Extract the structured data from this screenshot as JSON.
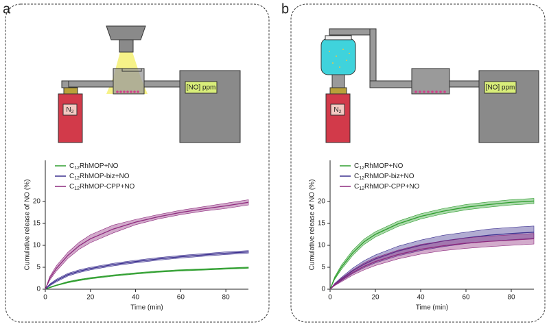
{
  "panels": [
    {
      "label": "a",
      "gas": "N2",
      "detector": "[NO] ppm"
    },
    {
      "label": "b",
      "gas": "N2",
      "detector": "[NO] ppm"
    }
  ],
  "chart_data": [
    {
      "type": "line",
      "x_label": "Time (min)",
      "y_label": "Cumulative release of NO (%)",
      "x": [
        0,
        2,
        5,
        10,
        15,
        20,
        30,
        40,
        50,
        60,
        70,
        80,
        90
      ],
      "xlim": [
        0,
        90
      ],
      "xticks": [
        0,
        20,
        40,
        60,
        80
      ],
      "ylim": [
        0,
        25
      ],
      "yticks": [
        0,
        5,
        10,
        15,
        20
      ],
      "grid": false,
      "legend": "upper left",
      "series": [
        {
          "name": "C12RhMOP+NO",
          "color": "#2e9e2e",
          "values": [
            0,
            0.4,
            0.9,
            1.6,
            2.1,
            2.5,
            3.1,
            3.6,
            4.0,
            4.3,
            4.5,
            4.7,
            4.9
          ],
          "errors": [
            0,
            0.1,
            0.1,
            0.15,
            0.15,
            0.15,
            0.15,
            0.15,
            0.15,
            0.15,
            0.15,
            0.15,
            0.15
          ]
        },
        {
          "name": "C12RhMOP-biz+NO",
          "color": "#3b2f8f",
          "values": [
            0,
            1.0,
            2.0,
            3.3,
            4.1,
            4.7,
            5.6,
            6.3,
            6.9,
            7.4,
            7.8,
            8.2,
            8.5
          ],
          "errors": [
            0,
            0.2,
            0.3,
            0.3,
            0.3,
            0.3,
            0.3,
            0.3,
            0.3,
            0.3,
            0.3,
            0.3,
            0.3
          ]
        },
        {
          "name": "C12RhMOP-CPP+NO",
          "color": "#8e2a7e",
          "values": [
            0,
            2.5,
            4.8,
            7.7,
            9.9,
            11.5,
            13.7,
            15.3,
            16.5,
            17.5,
            18.3,
            19.0,
            19.8
          ],
          "errors": [
            0,
            0.4,
            0.6,
            0.7,
            0.8,
            0.9,
            0.9,
            0.6,
            0.5,
            0.5,
            0.5,
            0.6,
            0.6
          ]
        }
      ]
    },
    {
      "type": "line",
      "x_label": "Time (min)",
      "y_label": "Cumulative release of NO (%)",
      "x": [
        0,
        2,
        5,
        10,
        15,
        20,
        30,
        40,
        50,
        60,
        70,
        80,
        90
      ],
      "xlim": [
        0,
        90
      ],
      "xticks": [
        0,
        20,
        40,
        60,
        80
      ],
      "ylim": [
        0,
        25
      ],
      "yticks": [
        0,
        5,
        10,
        15,
        20
      ],
      "grid": false,
      "legend": "upper left",
      "series": [
        {
          "name": "C12RhMOP+NO",
          "color": "#2e9e2e",
          "values": [
            0,
            2.5,
            5.0,
            8.3,
            10.8,
            12.5,
            14.9,
            16.6,
            17.8,
            18.7,
            19.3,
            19.8,
            20.1
          ],
          "errors": [
            0,
            0.3,
            0.5,
            0.6,
            0.6,
            0.6,
            0.6,
            0.6,
            0.6,
            0.6,
            0.6,
            0.6,
            0.6
          ]
        },
        {
          "name": "C12RhMOP-biz+NO",
          "color": "#3b2f8f",
          "values": [
            0,
            1.1,
            2.3,
            4.2,
            5.7,
            6.9,
            8.7,
            10.0,
            11.0,
            11.7,
            12.3,
            12.7,
            13.0
          ],
          "errors": [
            0,
            0.2,
            0.4,
            0.6,
            0.8,
            0.9,
            1.1,
            1.2,
            1.3,
            1.3,
            1.4,
            1.4,
            1.4
          ]
        },
        {
          "name": "C12RhMOP-CPP+NO",
          "color": "#8e2a7e",
          "values": [
            0,
            1.0,
            2.1,
            3.8,
            5.2,
            6.3,
            7.9,
            9.1,
            9.9,
            10.5,
            10.9,
            11.2,
            11.5
          ],
          "errors": [
            0,
            0.2,
            0.4,
            0.6,
            0.8,
            0.9,
            1.0,
            1.1,
            1.1,
            1.2,
            1.2,
            1.2,
            1.2
          ]
        }
      ]
    }
  ]
}
